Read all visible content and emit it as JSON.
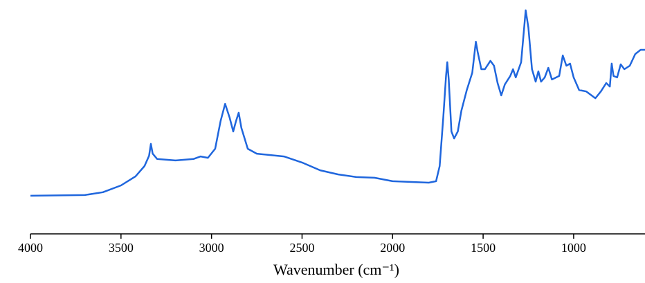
{
  "chart_data": {
    "type": "line",
    "x_label": "Wavenumber (cm⁻¹)",
    "x": [
      4000,
      3700,
      3600,
      3500,
      3420,
      3370,
      3345,
      3335,
      3325,
      3300,
      3200,
      3100,
      3060,
      3020,
      2980,
      2950,
      2925,
      2900,
      2880,
      2865,
      2850,
      2835,
      2800,
      2750,
      2600,
      2500,
      2400,
      2300,
      2200,
      2100,
      2000,
      1800,
      1760,
      1740,
      1720,
      1705,
      1698,
      1690,
      1675,
      1660,
      1640,
      1620,
      1590,
      1560,
      1540,
      1530,
      1510,
      1490,
      1460,
      1440,
      1420,
      1400,
      1380,
      1350,
      1335,
      1320,
      1290,
      1265,
      1250,
      1230,
      1210,
      1195,
      1180,
      1160,
      1140,
      1120,
      1080,
      1060,
      1040,
      1020,
      1000,
      970,
      930,
      880,
      850,
      820,
      800,
      790,
      780,
      760,
      740,
      720,
      690,
      660,
      630,
      606
    ],
    "y": [
      16.3,
      16.6,
      17.8,
      20.7,
      24.6,
      29,
      33.4,
      38.5,
      34.3,
      32,
      31.4,
      32,
      33.1,
      32.5,
      36.4,
      48.2,
      55.6,
      49.7,
      43.8,
      48.2,
      51.8,
      45.3,
      36.4,
      34.3,
      33.1,
      30.5,
      27.2,
      25.4,
      24.3,
      24,
      22.5,
      21.9,
      22.5,
      29,
      49.7,
      67.5,
      73.4,
      66,
      43.8,
      40.8,
      43.8,
      52.7,
      61.5,
      68.9,
      82.2,
      77.8,
      70.4,
      70.4,
      74,
      71.9,
      64.5,
      59.2,
      63.9,
      67.5,
      70.4,
      66.9,
      73.4,
      95.6,
      88.2,
      70.4,
      65.1,
      69.5,
      65.1,
      66.9,
      71,
      66,
      67.5,
      76.3,
      71.9,
      72.8,
      66.9,
      61.5,
      60.9,
      58,
      60.9,
      64.5,
      63,
      72.8,
      67.5,
      66.9,
      72.5,
      70.4,
      71.9,
      76.9,
      78.7,
      78.7
    ],
    "color": "#1f66dd",
    "xlim": [
      4000,
      606
    ],
    "xticks": [
      4000,
      3500,
      3000,
      2500,
      2000,
      1500,
      1000
    ],
    "ylim": [
      0,
      100
    ]
  }
}
